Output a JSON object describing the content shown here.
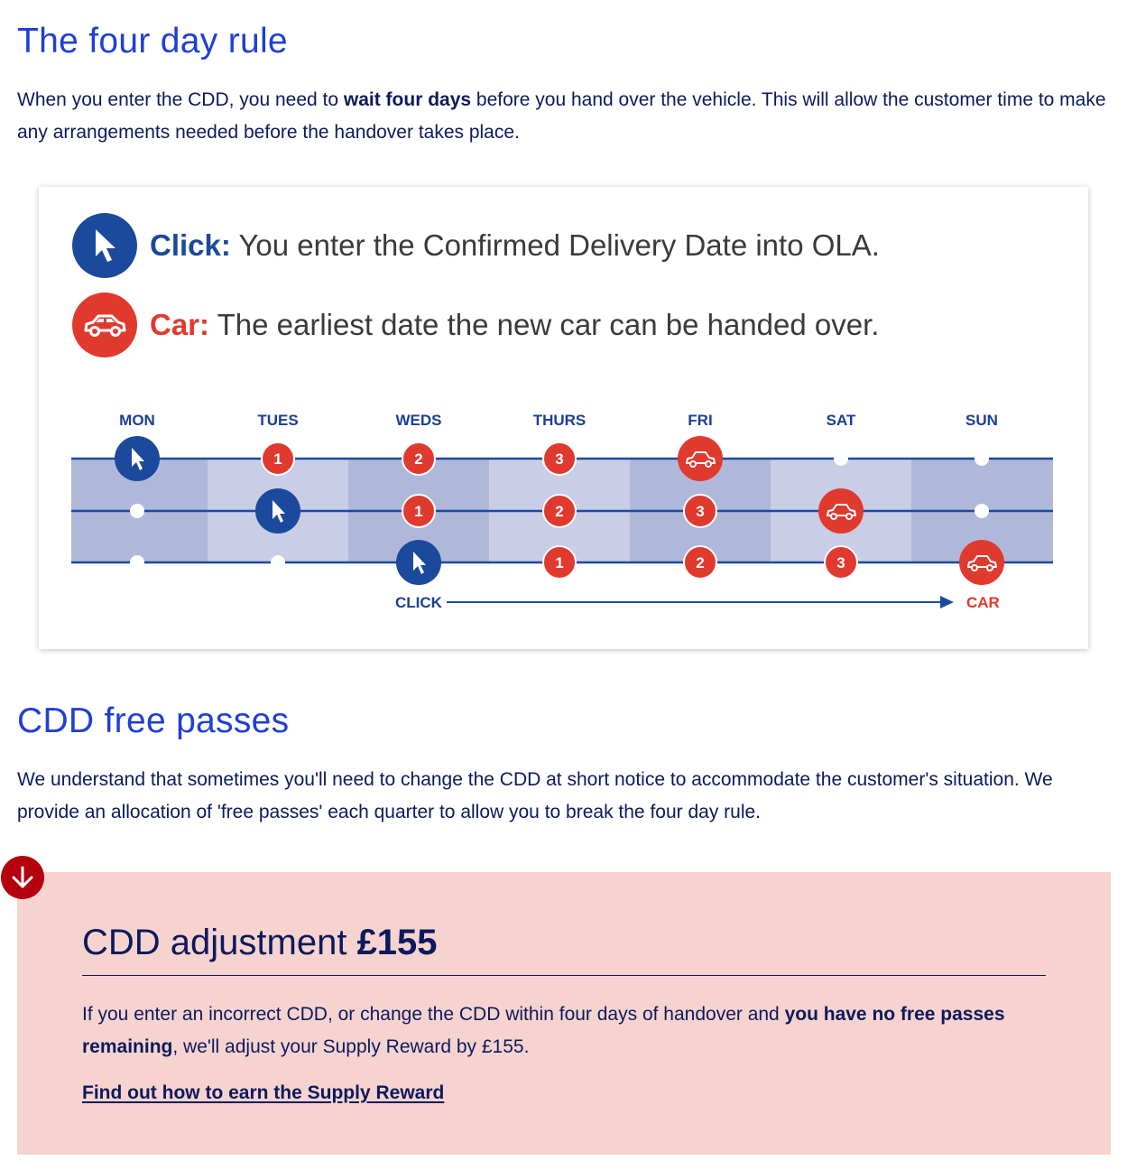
{
  "section1": {
    "heading": "The four day rule",
    "para_before": "When you enter the CDD, you need to ",
    "para_bold": "wait four days",
    "para_after": " before you hand over the vehicle. This will allow the customer time to make any arrangements needed before the handover takes place."
  },
  "infographic": {
    "click_legend_label": "Click:",
    "click_legend_text": " You enter the Confirmed Delivery Date into OLA.",
    "car_legend_label": "Car:",
    "car_legend_text": " The earliest date the new car can be handed over.",
    "days": [
      "MON",
      "TUES",
      "WEDS",
      "THURS",
      "FRI",
      "SAT",
      "SUN"
    ],
    "rows": [
      [
        "click",
        "1",
        "2",
        "3",
        "car",
        "dot",
        "dot"
      ],
      [
        "dot",
        "click",
        "1",
        "2",
        "3",
        "car",
        "dot"
      ],
      [
        "dot",
        "dot",
        "click",
        "1",
        "2",
        "3",
        "car"
      ]
    ],
    "flow_start": "CLICK",
    "flow_end": "CAR",
    "colors": {
      "blue": "#1b4a9c",
      "red": "#e03a2f",
      "band_dark": "#b0b8da",
      "band_light": "#c9cde6"
    }
  },
  "section2": {
    "heading": "CDD free passes",
    "para": "We understand that sometimes you'll need to change the CDD at short notice to accommodate the customer's situation. We provide an allocation of 'free passes' each quarter to allow you to break the four day rule."
  },
  "callout": {
    "icon": "arrow-down-icon",
    "title_regular": "CDD adjustment ",
    "title_bold": "£155",
    "text_before": "If you enter an incorrect CDD, or change the CDD within four days of handover and ",
    "text_bold": "you have no free passes remaining",
    "text_after": ", we'll adjust your Supply Reward by £155.",
    "link": "Find out how to earn the Supply Reward"
  }
}
